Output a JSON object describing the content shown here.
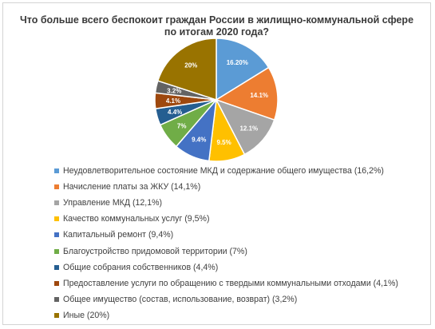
{
  "chart_data": {
    "type": "pie",
    "title_lines": [
      "Что больше всего беспокоит граждан России в жилищно-коммунальной сфере",
      "по итогам 2020 года?"
    ],
    "slices": [
      {
        "label": "Неудовлетворительное состояние МКД и содержание общего имущества (16,2%)",
        "value": 16.2,
        "data_label": "16.20%",
        "color": "#5b9bd5",
        "label_color": "#ffffff"
      },
      {
        "label": "Начисление платы за ЖКУ (14,1%)",
        "value": 14.1,
        "data_label": "14.1%",
        "color": "#ed7d31",
        "label_color": "#ffffff"
      },
      {
        "label": "Управление МКД (12,1%)",
        "value": 12.1,
        "data_label": "12.1%",
        "color": "#a5a5a5",
        "label_color": "#ffffff"
      },
      {
        "label": "Качество коммунальных услуг (9,5%)",
        "value": 9.5,
        "data_label": "9.5%",
        "color": "#ffc000",
        "label_color": "#ffffff"
      },
      {
        "label": "Капитальный ремонт (9,4%)",
        "value": 9.4,
        "data_label": "9.4%",
        "color": "#4472c4",
        "label_color": "#ffffff"
      },
      {
        "label": "Благоустройство придомовой территории (7%)",
        "value": 7,
        "data_label": "7%",
        "color": "#70ad47",
        "label_color": "#ffffff"
      },
      {
        "label": "Общие собрания собственников (4,4%)",
        "value": 4.4,
        "data_label": "4.4%",
        "color": "#255e91",
        "label_color": "#ffffff"
      },
      {
        "label": "Предоставление услуги по обращению  с твердыми коммунальными отходами (4,1%)",
        "value": 4.1,
        "data_label": "4.1%",
        "color": "#9e480e",
        "label_color": "#ffffff"
      },
      {
        "label": "Общее имущество (состав, использование, возврат) (3,2%)",
        "value": 3.2,
        "data_label": "3.2%",
        "color": "#636363",
        "label_color": "#ffffff"
      },
      {
        "label": "Иные (20%)",
        "value": 20,
        "data_label": "20%",
        "color": "#997300",
        "label_color": "#ffffff"
      }
    ],
    "legend_position": "bottom"
  }
}
